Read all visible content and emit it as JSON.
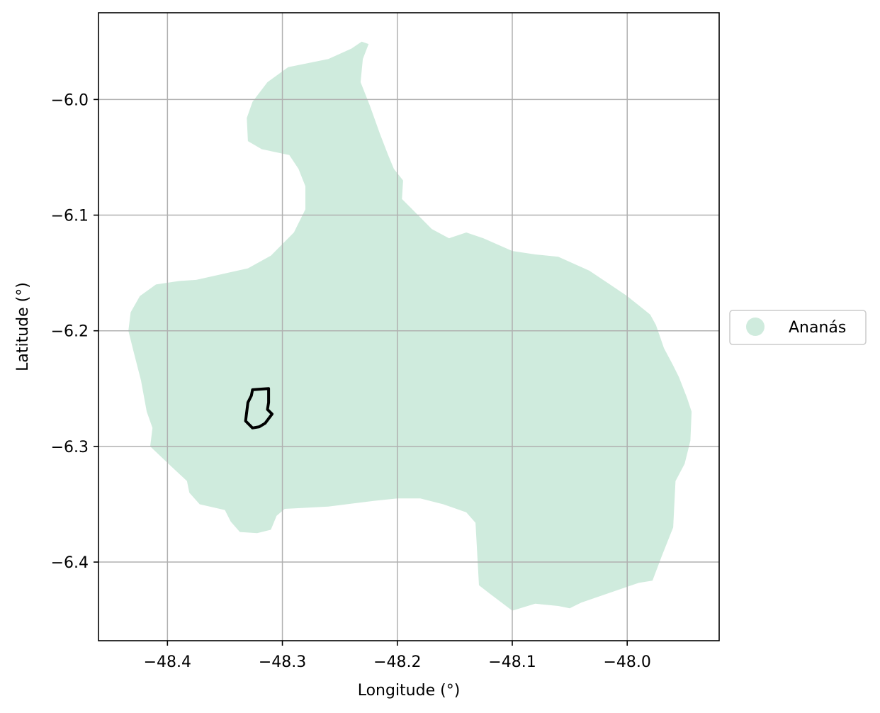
{
  "map": {
    "x_axis_label": "Longitude (°)",
    "y_axis_label": "Latitude (°)",
    "xlim": [
      -48.46,
      -47.92
    ],
    "ylim": [
      -6.468,
      -5.925
    ],
    "x_ticks": [
      {
        "value": -48.4,
        "label": "−48.4"
      },
      {
        "value": -48.3,
        "label": "−48.3"
      },
      {
        "value": -48.2,
        "label": "−48.2"
      },
      {
        "value": -48.1,
        "label": "−48.1"
      },
      {
        "value": -48.0,
        "label": "−48.0"
      }
    ],
    "y_ticks": [
      {
        "value": -6.0,
        "label": "−6.0"
      },
      {
        "value": -6.1,
        "label": "−6.1"
      },
      {
        "value": -6.2,
        "label": "−6.2"
      },
      {
        "value": -6.3,
        "label": "−6.3"
      },
      {
        "value": -6.4,
        "label": "−6.4"
      }
    ],
    "grid": true,
    "legend": {
      "placement": "right-center",
      "entries": [
        {
          "label": "Ananás",
          "color": "#cfebdd",
          "marker": "circle"
        }
      ]
    },
    "colors": {
      "region_fill": "#cfebdd",
      "outline": "#000000",
      "grid": "#b0b0b0"
    },
    "region": {
      "name": "Ananás",
      "boundary": [
        [
          -48.231,
          -5.95
        ],
        [
          -48.24,
          -5.956
        ],
        [
          -48.26,
          -5.965
        ],
        [
          -48.295,
          -5.972
        ],
        [
          -48.313,
          -5.985
        ],
        [
          -48.326,
          -6.002
        ],
        [
          -48.331,
          -6.016
        ],
        [
          -48.33,
          -6.036
        ],
        [
          -48.318,
          -6.043
        ],
        [
          -48.294,
          -6.048
        ],
        [
          -48.286,
          -6.06
        ],
        [
          -48.28,
          -6.075
        ],
        [
          -48.28,
          -6.095
        ],
        [
          -48.29,
          -6.115
        ],
        [
          -48.31,
          -6.135
        ],
        [
          -48.33,
          -6.146
        ],
        [
          -48.375,
          -6.156
        ],
        [
          -48.39,
          -6.157
        ],
        [
          -48.41,
          -6.16
        ],
        [
          -48.424,
          -6.17
        ],
        [
          -48.432,
          -6.184
        ],
        [
          -48.434,
          -6.2
        ],
        [
          -48.43,
          -6.216
        ],
        [
          -48.423,
          -6.243
        ],
        [
          -48.418,
          -6.27
        ],
        [
          -48.413,
          -6.284
        ],
        [
          -48.415,
          -6.3
        ],
        [
          -48.397,
          -6.317
        ],
        [
          -48.383,
          -6.33
        ],
        [
          -48.381,
          -6.34
        ],
        [
          -48.372,
          -6.35
        ],
        [
          -48.35,
          -6.355
        ],
        [
          -48.345,
          -6.365
        ],
        [
          -48.337,
          -6.374
        ],
        [
          -48.322,
          -6.375
        ],
        [
          -48.31,
          -6.372
        ],
        [
          -48.305,
          -6.36
        ],
        [
          -48.298,
          -6.354
        ],
        [
          -48.26,
          -6.352
        ],
        [
          -48.22,
          -6.347
        ],
        [
          -48.2,
          -6.345
        ],
        [
          -48.18,
          -6.345
        ],
        [
          -48.16,
          -6.35
        ],
        [
          -48.14,
          -6.357
        ],
        [
          -48.132,
          -6.366
        ],
        [
          -48.129,
          -6.42
        ],
        [
          -48.12,
          -6.427
        ],
        [
          -48.1,
          -6.442
        ],
        [
          -48.08,
          -6.436
        ],
        [
          -48.06,
          -6.438
        ],
        [
          -48.05,
          -6.44
        ],
        [
          -48.04,
          -6.435
        ],
        [
          -47.99,
          -6.418
        ],
        [
          -47.978,
          -6.416
        ],
        [
          -47.97,
          -6.395
        ],
        [
          -47.96,
          -6.37
        ],
        [
          -47.958,
          -6.33
        ],
        [
          -47.95,
          -6.315
        ],
        [
          -47.945,
          -6.295
        ],
        [
          -47.944,
          -6.27
        ],
        [
          -47.948,
          -6.258
        ],
        [
          -47.955,
          -6.24
        ],
        [
          -47.96,
          -6.23
        ],
        [
          -47.968,
          -6.215
        ],
        [
          -47.975,
          -6.195
        ],
        [
          -47.98,
          -6.186
        ],
        [
          -47.99,
          -6.178
        ],
        [
          -48.0,
          -6.17
        ],
        [
          -48.015,
          -6.16
        ],
        [
          -48.033,
          -6.148
        ],
        [
          -48.06,
          -6.136
        ],
        [
          -48.08,
          -6.134
        ],
        [
          -48.1,
          -6.131
        ],
        [
          -48.125,
          -6.12
        ],
        [
          -48.14,
          -6.115
        ],
        [
          -48.155,
          -6.12
        ],
        [
          -48.17,
          -6.112
        ],
        [
          -48.186,
          -6.096
        ],
        [
          -48.196,
          -6.086
        ],
        [
          -48.195,
          -6.07
        ],
        [
          -48.203,
          -6.06
        ],
        [
          -48.208,
          -6.048
        ],
        [
          -48.215,
          -6.03
        ],
        [
          -48.224,
          -6.005
        ],
        [
          -48.232,
          -5.985
        ],
        [
          -48.23,
          -5.965
        ],
        [
          -48.225,
          -5.952
        ]
      ]
    },
    "feature_outline": {
      "boundary": [
        [
          -48.326,
          -6.251
        ],
        [
          -48.312,
          -6.25
        ],
        [
          -48.312,
          -6.262
        ],
        [
          -48.313,
          -6.268
        ],
        [
          -48.309,
          -6.272
        ],
        [
          -48.315,
          -6.28
        ],
        [
          -48.32,
          -6.283
        ],
        [
          -48.326,
          -6.284
        ],
        [
          -48.332,
          -6.278
        ],
        [
          -48.33,
          -6.262
        ],
        [
          -48.327,
          -6.256
        ]
      ]
    }
  }
}
